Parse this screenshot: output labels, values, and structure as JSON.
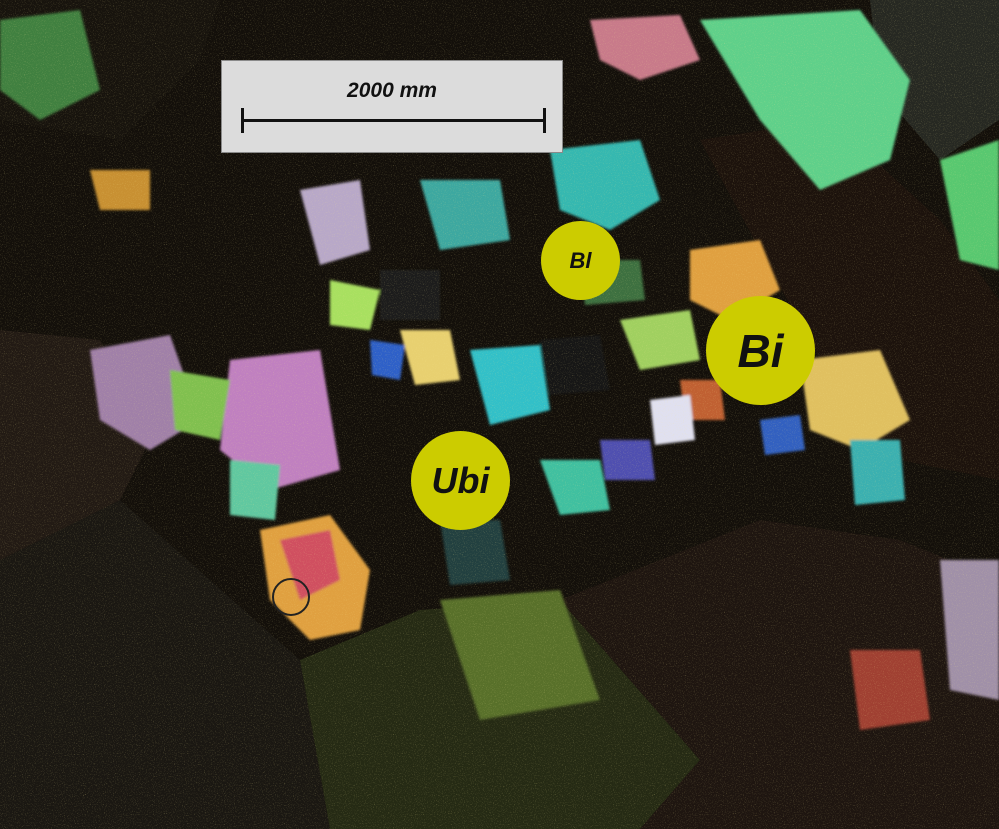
{
  "scale_bar": {
    "label": "2000 mm"
  },
  "mineral_labels": [
    {
      "id": "bl",
      "text": "Bl",
      "color": "#cccc00"
    },
    {
      "id": "bi",
      "text": "Bi",
      "color": "#cccc00"
    },
    {
      "id": "ubi",
      "text": "Ubi",
      "color": "#cccc00"
    }
  ],
  "colors": {
    "label_fill": "#cccc00",
    "scale_box": "#dcdcdc"
  }
}
